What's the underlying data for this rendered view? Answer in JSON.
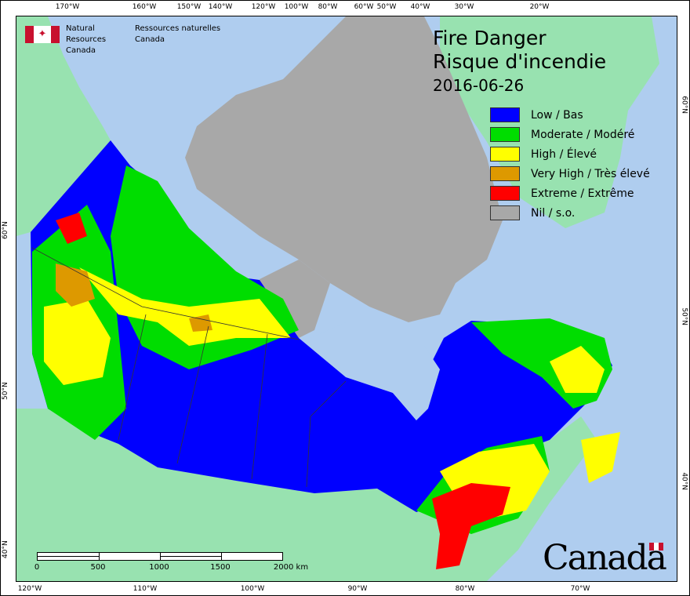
{
  "title": {
    "line1": "Fire Danger",
    "line2": "Risque d'incendie",
    "date": "2016-06-26"
  },
  "agency": {
    "en_line1": "Natural Resources",
    "en_line2": "Canada",
    "fr_line1": "Ressources naturelles",
    "fr_line2": "Canada",
    "flag_icon": "canada-flag-icon"
  },
  "legend": [
    {
      "label": "Low / Bas",
      "color": "#0000ff"
    },
    {
      "label": "Moderate / Modéré",
      "color": "#00dd00"
    },
    {
      "label": "High / Élevé",
      "color": "#ffff00"
    },
    {
      "label": "Very High / Très élevé",
      "color": "#dd9900"
    },
    {
      "label": "Extreme / Extrême",
      "color": "#ff0000"
    },
    {
      "label": "Nil / s.o.",
      "color": "#a8a8a8"
    }
  ],
  "axes": {
    "top": [
      "170°W",
      "160°W",
      "150°W",
      "140°W",
      "120°W",
      "100°W",
      "80°W",
      "60°W",
      "50°W",
      "40°W",
      "30°W",
      "20°W"
    ],
    "bottom": [
      "120°W",
      "110°W",
      "100°W",
      "90°W",
      "80°W",
      "70°W"
    ],
    "left": [
      "60°N",
      "50°N",
      "40°N"
    ],
    "right": [
      "60°N",
      "50°N",
      "40°N"
    ]
  },
  "scale_bar": {
    "labels": [
      "0",
      "500",
      "1000",
      "1500",
      "2000 km"
    ]
  },
  "wordmark": "Canada",
  "colors": {
    "ocean": "#afcdef",
    "foreign_land": "#98e2b0",
    "nil": "#a8a8a8"
  }
}
